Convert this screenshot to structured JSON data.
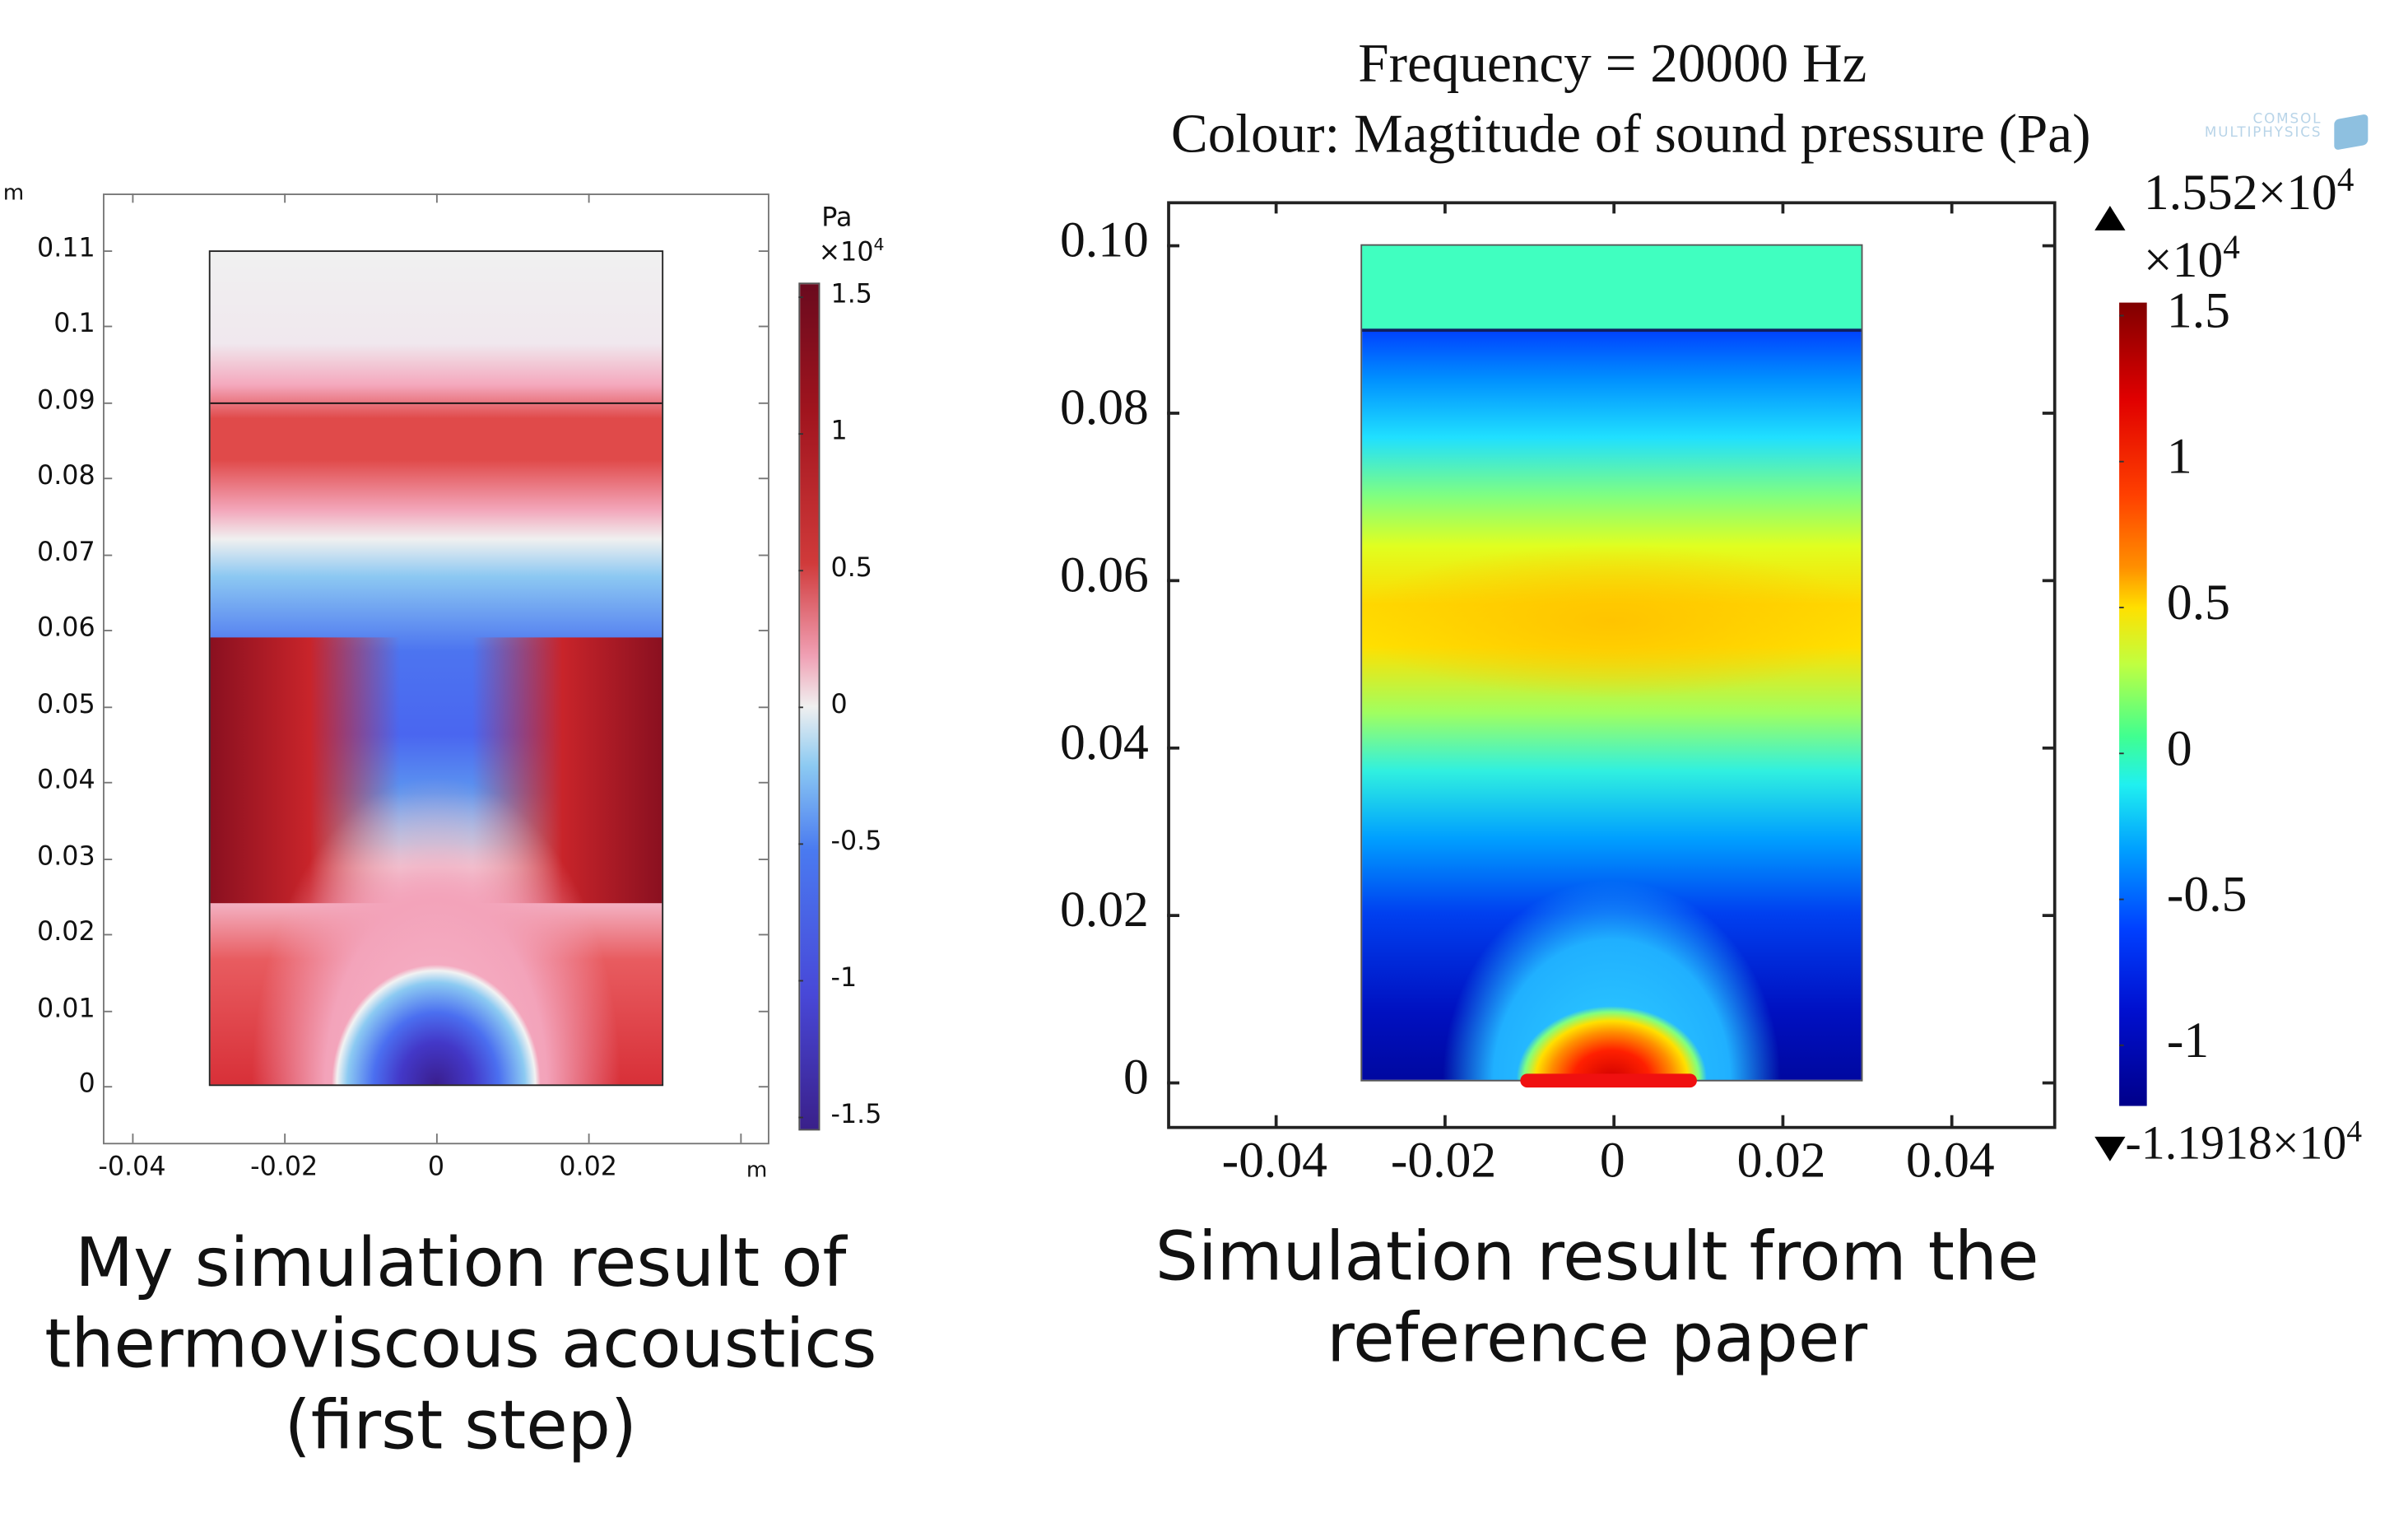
{
  "chart_data": [
    {
      "type": "heatmap",
      "title": "",
      "xlabel": "m",
      "ylabel": "m",
      "x_ticks": [
        "-0.04",
        "-0.02",
        "0",
        "0.02"
      ],
      "x_tick_values": [
        -0.04,
        -0.02,
        0,
        0.02
      ],
      "y_ticks": [
        "0.11",
        "0.1",
        "0.09",
        "0.08",
        "0.07",
        "0.06",
        "0.05",
        "0.04",
        "0.03",
        "0.02",
        "0.01",
        "0"
      ],
      "y_tick_values": [
        0.11,
        0.1,
        0.09,
        0.08,
        0.07,
        0.06,
        0.05,
        0.04,
        0.03,
        0.02,
        0.01,
        0
      ],
      "xlim": [
        -0.045,
        0.045
      ],
      "ylim": [
        -0.0075,
        0.1175
      ],
      "domain": {
        "x": [
          -0.03,
          0.03
        ],
        "y": [
          0,
          0.11
        ],
        "interface_y": 0.09
      },
      "colorbar": {
        "unit": "Pa",
        "multiplier": "×10",
        "multiplier_exp": "4",
        "ticks": [
          "1.5",
          "1",
          "0.5",
          "0",
          "-0.5",
          "-1",
          "-1.5"
        ],
        "tick_values": [
          1.5,
          1,
          0.5,
          0,
          -0.5,
          -1,
          -1.5
        ],
        "range": [
          -1.6,
          1.6
        ],
        "colormap": "diverging blue-white-red"
      },
      "caption": [
        "My simulation result of",
        "thermoviscous acoustics",
        "(first step)"
      ]
    },
    {
      "type": "heatmap",
      "title": "Frequency = 20000 Hz",
      "subtitle": "Colour: Magtitude of sound pressure (Pa)",
      "watermark": "COMSOL MULTIPHYSICS",
      "x_ticks": [
        "-0.04",
        "-0.02",
        "0",
        "0.02",
        "0.04"
      ],
      "x_tick_values": [
        -0.04,
        -0.02,
        0,
        0.02,
        0.04
      ],
      "y_ticks": [
        "0.10",
        "0.08",
        "0.06",
        "0.04",
        "0.02",
        "0"
      ],
      "y_tick_values": [
        0.1,
        0.08,
        0.06,
        0.04,
        0.02,
        0
      ],
      "xlim": [
        -0.052,
        0.052
      ],
      "ylim": [
        -0.0055,
        0.105
      ],
      "domain": {
        "x": [
          -0.03,
          0.03
        ],
        "y": [
          0,
          0.1
        ],
        "interface_y": 0.09,
        "source_x": [
          -0.01,
          0.01
        ]
      },
      "colorbar": {
        "max_label": "1.552×10",
        "max_exp": "4",
        "min_label": "-1.1918×10",
        "min_exp": "4",
        "multiplier": "×10",
        "multiplier_exp": "4",
        "ticks": [
          "1.5",
          "1",
          "0.5",
          "0",
          "-0.5",
          "-1"
        ],
        "tick_values": [
          1.5,
          1,
          0.5,
          0,
          -0.5,
          -1
        ],
        "range": [
          -1.1918,
          1.552
        ],
        "colormap": "jet"
      },
      "caption": [
        "Simulation result from the",
        "reference paper"
      ]
    }
  ]
}
